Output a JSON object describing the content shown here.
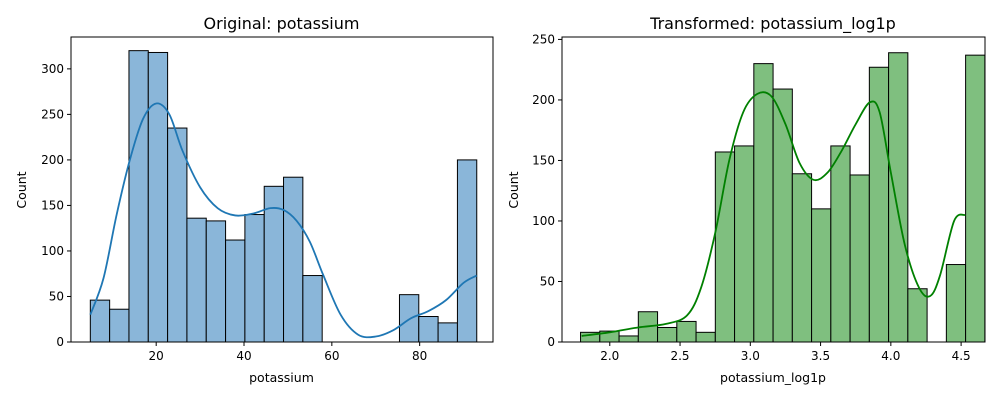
{
  "chart_data": [
    {
      "type": "histogram",
      "title": "Original: potassium",
      "xlabel": "potassium",
      "ylabel": "Count",
      "xlim": [
        0.6,
        96.7
      ],
      "ylim": [
        0,
        335
      ],
      "xticks": [
        20,
        40,
        60,
        80
      ],
      "yticks": [
        0,
        50,
        100,
        150,
        200,
        250,
        300
      ],
      "grid": false,
      "bar_color": "#8ab6d9",
      "line_color": "#1f77b4",
      "bins": [
        {
          "x0": 5.0,
          "x1": 9.4,
          "count": 46
        },
        {
          "x0": 9.4,
          "x1": 13.8,
          "count": 36
        },
        {
          "x0": 13.8,
          "x1": 18.2,
          "count": 320
        },
        {
          "x0": 18.2,
          "x1": 22.6,
          "count": 318
        },
        {
          "x0": 22.6,
          "x1": 27.0,
          "count": 235
        },
        {
          "x0": 27.0,
          "x1": 31.4,
          "count": 136
        },
        {
          "x0": 31.4,
          "x1": 35.8,
          "count": 133
        },
        {
          "x0": 35.8,
          "x1": 40.2,
          "count": 112
        },
        {
          "x0": 40.2,
          "x1": 44.6,
          "count": 140
        },
        {
          "x0": 44.6,
          "x1": 49.0,
          "count": 171
        },
        {
          "x0": 49.0,
          "x1": 53.4,
          "count": 181
        },
        {
          "x0": 53.4,
          "x1": 57.8,
          "count": 73
        },
        {
          "x0": 75.4,
          "x1": 79.8,
          "count": 52
        },
        {
          "x0": 79.8,
          "x1": 84.2,
          "count": 28
        },
        {
          "x0": 84.2,
          "x1": 88.6,
          "count": 21
        },
        {
          "x0": 88.6,
          "x1": 93.0,
          "count": 200
        }
      ],
      "kde": {
        "x": [
          5,
          8,
          11,
          14,
          17,
          20,
          23,
          26,
          30,
          34,
          38,
          42,
          46,
          49,
          52,
          55,
          58,
          62,
          66,
          70,
          74,
          78,
          82,
          86,
          90,
          93
        ],
        "y": [
          30,
          70,
          140,
          200,
          245,
          262,
          250,
          210,
          170,
          147,
          139,
          141,
          147,
          145,
          133,
          110,
          74,
          30,
          8,
          6,
          13,
          26,
          34,
          46,
          65,
          73
        ]
      }
    },
    {
      "type": "histogram",
      "title": "Transformed: potassium_log1p",
      "xlabel": "potassium_log1p",
      "ylabel": "Count",
      "xlim": [
        1.66,
        4.67
      ],
      "ylim": [
        0,
        252
      ],
      "xticks": [
        2.0,
        2.5,
        3.0,
        3.5,
        4.0,
        4.5
      ],
      "yticks": [
        0,
        50,
        100,
        150,
        200,
        250
      ],
      "grid": false,
      "bar_color": "#7fbf7f",
      "line_color": "#008000",
      "bins": [
        {
          "x0": 1.792,
          "x1": 1.929,
          "count": 8
        },
        {
          "x0": 1.929,
          "x1": 2.066,
          "count": 9
        },
        {
          "x0": 2.066,
          "x1": 2.203,
          "count": 5
        },
        {
          "x0": 2.203,
          "x1": 2.34,
          "count": 25
        },
        {
          "x0": 2.34,
          "x1": 2.477,
          "count": 12
        },
        {
          "x0": 2.477,
          "x1": 2.614,
          "count": 17
        },
        {
          "x0": 2.614,
          "x1": 2.751,
          "count": 8
        },
        {
          "x0": 2.751,
          "x1": 2.888,
          "count": 157
        },
        {
          "x0": 2.888,
          "x1": 3.025,
          "count": 162
        },
        {
          "x0": 3.025,
          "x1": 3.162,
          "count": 230
        },
        {
          "x0": 3.162,
          "x1": 3.299,
          "count": 209
        },
        {
          "x0": 3.299,
          "x1": 3.436,
          "count": 139
        },
        {
          "x0": 3.436,
          "x1": 3.573,
          "count": 110
        },
        {
          "x0": 3.573,
          "x1": 3.71,
          "count": 162
        },
        {
          "x0": 3.71,
          "x1": 3.847,
          "count": 138
        },
        {
          "x0": 3.847,
          "x1": 3.984,
          "count": 227
        },
        {
          "x0": 3.984,
          "x1": 4.121,
          "count": 239
        },
        {
          "x0": 4.121,
          "x1": 4.258,
          "count": 44
        },
        {
          "x0": 4.395,
          "x1": 4.532,
          "count": 64
        },
        {
          "x0": 4.532,
          "x1": 4.669,
          "count": 237
        }
      ],
      "kde": {
        "x": [
          1.8,
          2.0,
          2.2,
          2.4,
          2.55,
          2.65,
          2.75,
          2.85,
          2.95,
          3.05,
          3.15,
          3.25,
          3.35,
          3.45,
          3.55,
          3.65,
          3.75,
          3.85,
          3.92,
          4.0,
          4.1,
          4.2,
          4.28,
          4.35,
          4.45,
          4.53
        ],
        "y": [
          5,
          8,
          12,
          15,
          22,
          45,
          90,
          150,
          190,
          205,
          203,
          180,
          148,
          134,
          140,
          158,
          180,
          198,
          190,
          140,
          80,
          45,
          38,
          55,
          100,
          105
        ]
      }
    }
  ]
}
